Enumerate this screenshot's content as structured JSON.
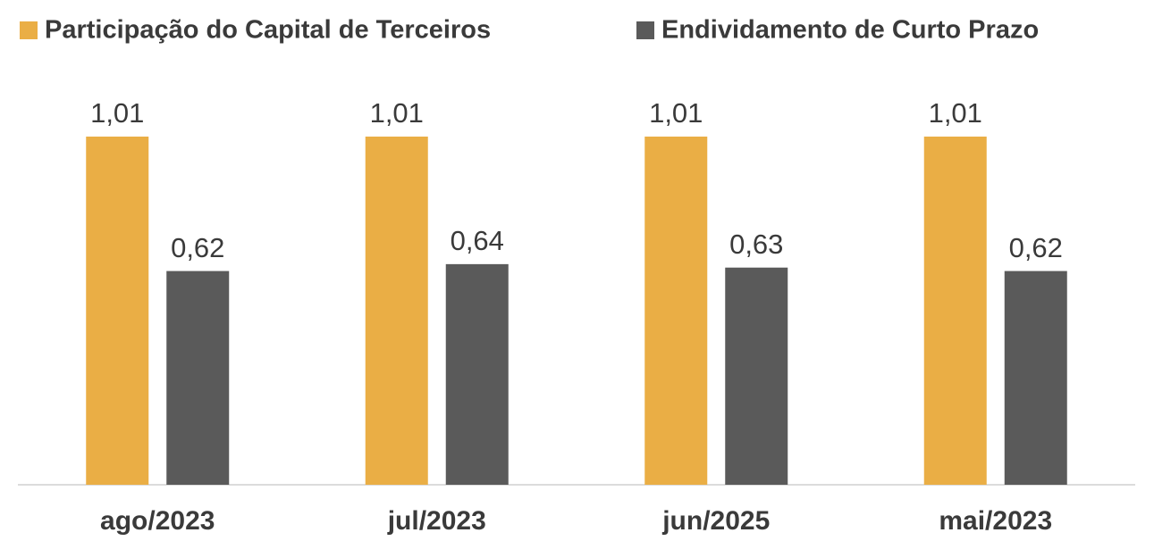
{
  "chart_data": {
    "type": "bar",
    "categories": [
      "ago/2023",
      "jul/2023",
      "jun/2025",
      "mai/2023"
    ],
    "series": [
      {
        "name": "Participação do Capital de Terceiros",
        "color": "#EAAE45",
        "values": [
          1.01,
          1.01,
          1.01,
          1.01
        ],
        "value_labels": [
          "1,01",
          "1,01",
          "1,01",
          "1,01"
        ]
      },
      {
        "name": "Endividamento de Curto Prazo",
        "color": "#5A5A5A",
        "values": [
          0.62,
          0.64,
          0.63,
          0.62
        ],
        "value_labels": [
          "0,62",
          "0,64",
          "0,63",
          "0,62"
        ]
      }
    ]
  }
}
